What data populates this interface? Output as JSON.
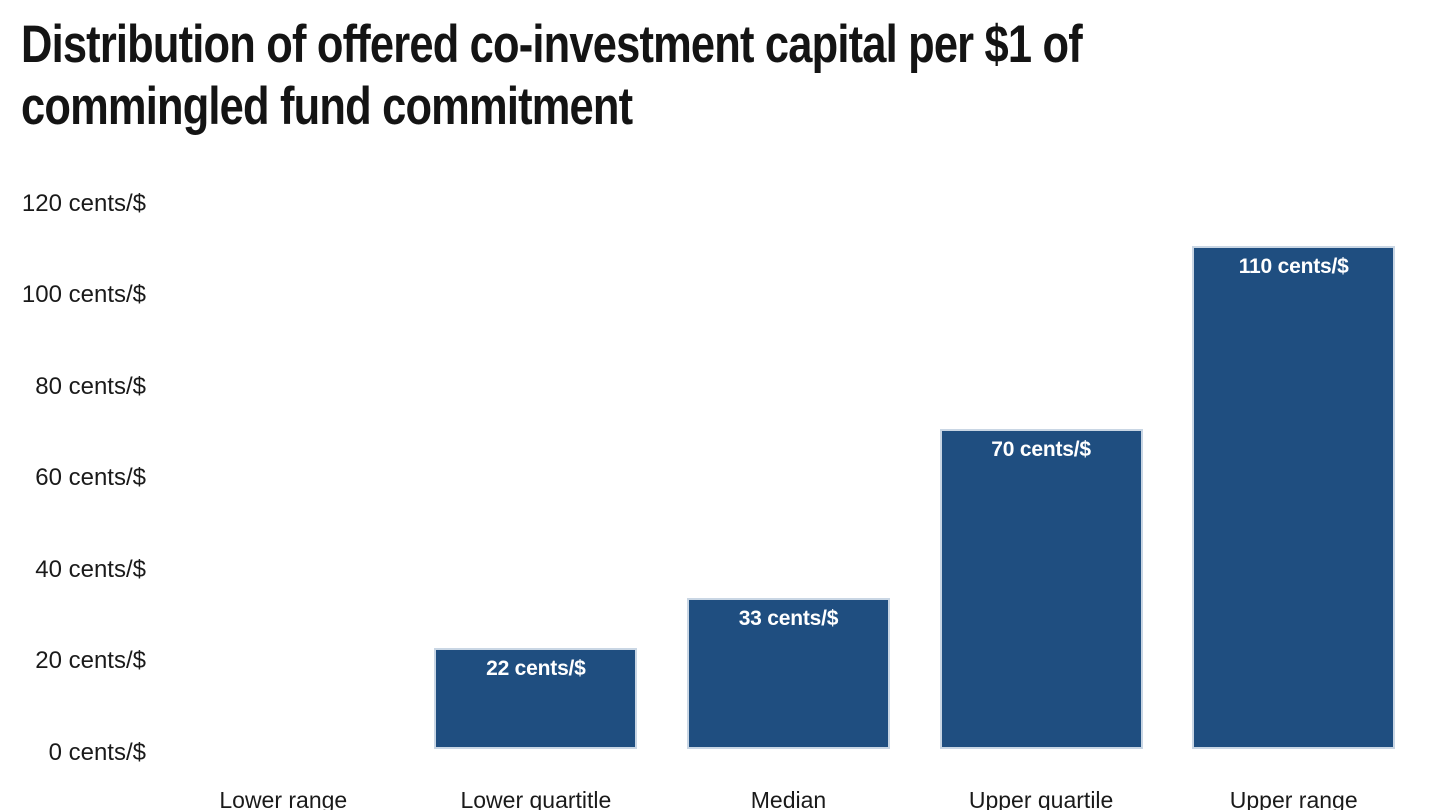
{
  "title": "Distribution of offered co-investment capital per $1 of commingled fund commitment",
  "title_lines": [
    "Distribution of offered co-investment capital per $1 of",
    "commingled fund commitment"
  ],
  "chart_data": {
    "type": "bar",
    "title": "Distribution of offered co-investment capital per $1 of commingled fund commitment",
    "categories": [
      "Lower range",
      "Lower quartitle",
      "Median",
      "Upper quartile",
      "Upper range"
    ],
    "values": [
      0,
      22,
      33,
      70,
      110
    ],
    "bar_labels": [
      "",
      "22 cents/$",
      "33 cents/$",
      "70 cents/$",
      "110 cents/$"
    ],
    "unit": "cents/$",
    "xlabel": "",
    "ylabel": "",
    "ylim": [
      0,
      120
    ],
    "y_tick_interval": 20,
    "y_tick_labels": [
      "0 cents/$",
      "20 cents/$",
      "40 cents/$",
      "60 cents/$",
      "80 cents/$",
      "100 cents/$",
      "120 cents/$"
    ],
    "grid": false,
    "legend": "none",
    "colors": {
      "bar_fill": "#1f4e80",
      "bar_border": "#c9d6e4",
      "bar_label_text": "#ffffff",
      "axis_text": "#1a1a1a",
      "title_text": "#141414",
      "background": "#ffffff"
    }
  }
}
